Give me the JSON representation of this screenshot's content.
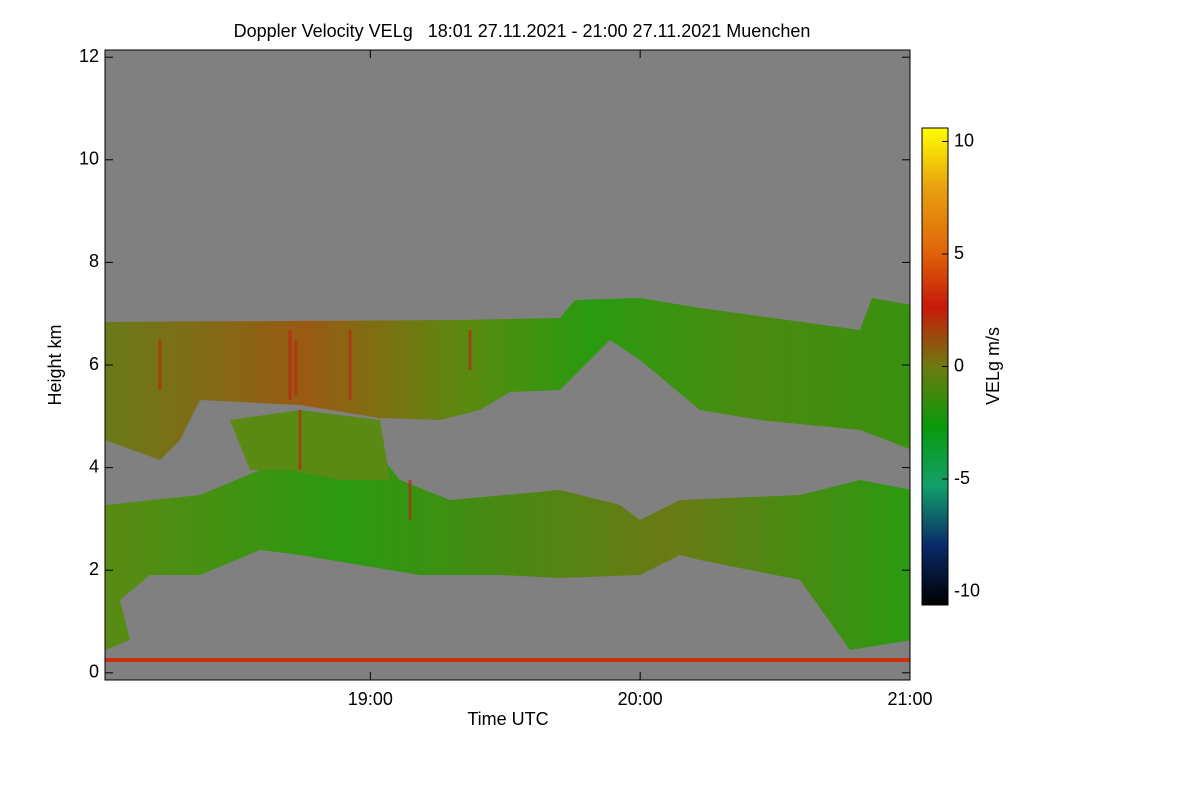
{
  "chart_data": {
    "type": "heatmap",
    "title": "Doppler Velocity VELg   18:01 27.11.2021 - 21:00 27.11.2021 Muenchen",
    "xlabel": "Time UTC",
    "ylabel": "Height km",
    "colorbar_label": "VELg m/s",
    "xlim": [
      18.0167,
      21.0
    ],
    "xticks": [
      {
        "value": 19,
        "label": "19:00"
      },
      {
        "value": 20,
        "label": "20:00"
      },
      {
        "value": 21,
        "label": "21:00"
      }
    ],
    "ylim": [
      -0.14,
      12.14
    ],
    "yticks": [
      0,
      2,
      4,
      6,
      8,
      10,
      12
    ],
    "clim": [
      -10.6,
      10.6
    ],
    "cticks": [
      -10,
      -5,
      0,
      5,
      10
    ],
    "colormap": [
      "#000000",
      "#0a2a6a",
      "#12a06a",
      "#0a9a0a",
      "#6e7a10",
      "#c81a0a",
      "#e06a0a",
      "#e8a010",
      "#ffff00"
    ],
    "background": "#808080"
  }
}
